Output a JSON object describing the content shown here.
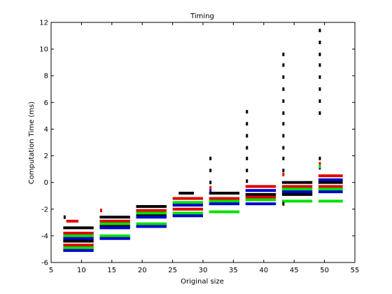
{
  "chart_data": {
    "type": "scatter",
    "title": "Timing",
    "xlabel": "Original size",
    "ylabel": "Computation Time (ms)",
    "xlim": [
      5,
      55
    ],
    "ylim": [
      -6,
      12
    ],
    "xticks": [
      5,
      10,
      15,
      20,
      25,
      30,
      35,
      40,
      45,
      50,
      55
    ],
    "yticks": [
      -6,
      -4,
      -2,
      0,
      2,
      4,
      6,
      8,
      10,
      12
    ],
    "grid": false,
    "legend": "none",
    "colors": {
      "black": "#000000",
      "red": "#e00000",
      "green": "#00e000",
      "blue": "#0000d0"
    },
    "groups": [
      {
        "x_start": 7,
        "x_end": 12,
        "bars": [
          {
            "color": "red",
            "y": -2.9,
            "x_start": 7.5,
            "x_end": 9.5
          },
          {
            "color": "black",
            "y": -3.4
          },
          {
            "color": "red",
            "y": -3.8
          },
          {
            "color": "green",
            "y": -4.0
          },
          {
            "color": "blue",
            "y": -4.2
          },
          {
            "color": "black",
            "y": -4.4
          },
          {
            "color": "red",
            "y": -4.7
          },
          {
            "color": "green",
            "y": -4.9
          },
          {
            "color": "blue",
            "y": -5.1
          }
        ],
        "outliers": [
          {
            "color": "black",
            "y": -2.6
          }
        ]
      },
      {
        "x_start": 13,
        "x_end": 18,
        "bars": [
          {
            "color": "black",
            "y": -2.6
          },
          {
            "color": "red",
            "y": -2.9
          },
          {
            "color": "green",
            "y": -3.1
          },
          {
            "color": "black",
            "y": -3.3
          },
          {
            "color": "blue",
            "y": -3.4
          },
          {
            "color": "green",
            "y": -4.0
          },
          {
            "color": "blue",
            "y": -4.2
          }
        ],
        "outliers": [
          {
            "color": "red",
            "y": -2.1
          }
        ]
      },
      {
        "x_start": 19,
        "x_end": 24,
        "bars": [
          {
            "color": "black",
            "y": -1.8
          },
          {
            "color": "red",
            "y": -2.1
          },
          {
            "color": "green",
            "y": -2.3
          },
          {
            "color": "black",
            "y": -2.5
          },
          {
            "color": "blue",
            "y": -2.6
          },
          {
            "color": "green",
            "y": -3.1
          },
          {
            "color": "blue",
            "y": -3.3
          }
        ],
        "outliers": []
      },
      {
        "x_start": 25,
        "x_end": 30,
        "bars": [
          {
            "color": "black",
            "y": -0.8,
            "x_start": 26,
            "x_end": 28.5
          },
          {
            "color": "red",
            "y": -1.2
          },
          {
            "color": "green",
            "y": -1.5
          },
          {
            "color": "blue",
            "y": -1.7
          },
          {
            "color": "red",
            "y": -2.0
          },
          {
            "color": "green",
            "y": -2.3
          },
          {
            "color": "blue",
            "y": -2.5
          }
        ],
        "outliers": []
      },
      {
        "x_start": 31,
        "x_end": 36,
        "bars": [
          {
            "color": "black",
            "y": -0.8
          },
          {
            "color": "red",
            "y": -1.2
          },
          {
            "color": "green",
            "y": -1.4
          },
          {
            "color": "blue",
            "y": -1.6
          },
          {
            "color": "green",
            "y": -2.2
          }
        ],
        "outliers": [
          {
            "color": "black",
            "y": 1.8
          },
          {
            "color": "black",
            "y": 0.9
          },
          {
            "color": "black",
            "y": 0.0
          },
          {
            "color": "blue",
            "y": -0.6
          },
          {
            "color": "red",
            "y": -0.4
          }
        ]
      },
      {
        "x_start": 37,
        "x_end": 42,
        "bars": [
          {
            "color": "red",
            "y": -0.3
          },
          {
            "color": "blue",
            "y": -0.6
          },
          {
            "color": "black",
            "y": -0.9
          },
          {
            "color": "red",
            "y": -1.1
          },
          {
            "color": "green",
            "y": -1.3
          },
          {
            "color": "blue",
            "y": -1.6
          }
        ],
        "outliers": [
          {
            "color": "black",
            "y": 5.3
          },
          {
            "color": "black",
            "y": 4.4
          },
          {
            "color": "black",
            "y": 3.5
          },
          {
            "color": "black",
            "y": 2.6
          },
          {
            "color": "black",
            "y": 1.8
          },
          {
            "color": "black",
            "y": 0.9
          },
          {
            "color": "black",
            "y": 0.1
          }
        ]
      },
      {
        "x_start": 43,
        "x_end": 48,
        "bars": [
          {
            "color": "black",
            "y": 0.0
          },
          {
            "color": "red",
            "y": -0.3
          },
          {
            "color": "green",
            "y": -0.5
          },
          {
            "color": "blue",
            "y": -0.7
          },
          {
            "color": "black",
            "y": -0.9
          },
          {
            "color": "green",
            "y": -1.4
          }
        ],
        "outliers": [
          {
            "color": "black",
            "y": 9.6
          },
          {
            "color": "black",
            "y": 8.8
          },
          {
            "color": "black",
            "y": 7.9
          },
          {
            "color": "black",
            "y": 7.0
          },
          {
            "color": "black",
            "y": 6.1
          },
          {
            "color": "black",
            "y": 5.2
          },
          {
            "color": "black",
            "y": 4.4
          },
          {
            "color": "black",
            "y": 3.5
          },
          {
            "color": "black",
            "y": 2.6
          },
          {
            "color": "black",
            "y": 1.8
          },
          {
            "color": "black",
            "y": 0.9
          },
          {
            "color": "red",
            "y": 0.6
          },
          {
            "color": "black",
            "y": -1.6
          }
        ]
      },
      {
        "x_start": 49,
        "x_end": 53,
        "bars": [
          {
            "color": "red",
            "y": 0.5
          },
          {
            "color": "blue",
            "y": 0.2
          },
          {
            "color": "black",
            "y": 0.0
          },
          {
            "color": "red",
            "y": -0.3
          },
          {
            "color": "green",
            "y": -0.5
          },
          {
            "color": "blue",
            "y": -0.7
          },
          {
            "color": "green",
            "y": -1.4
          }
        ],
        "outliers": [
          {
            "color": "black",
            "y": 11.4
          },
          {
            "color": "black",
            "y": 10.5
          },
          {
            "color": "black",
            "y": 9.6
          },
          {
            "color": "black",
            "y": 8.8
          },
          {
            "color": "black",
            "y": 7.9
          },
          {
            "color": "black",
            "y": 7.0
          },
          {
            "color": "black",
            "y": 6.1
          },
          {
            "color": "black",
            "y": 5.2
          },
          {
            "color": "black",
            "y": 1.8
          },
          {
            "color": "red",
            "y": 1.4
          },
          {
            "color": "blue",
            "y": 1.1
          },
          {
            "color": "green",
            "y": 1.2
          }
        ]
      }
    ]
  }
}
